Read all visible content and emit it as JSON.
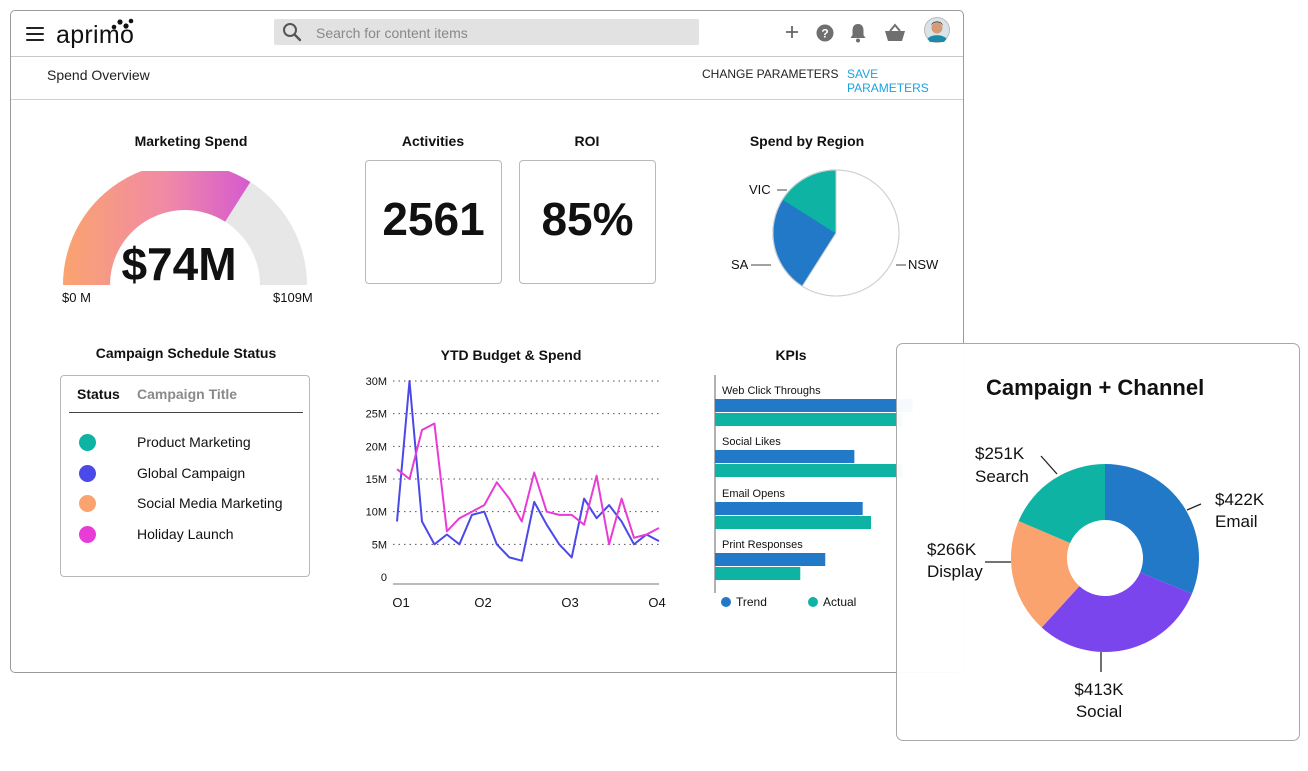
{
  "header": {
    "logo": "aprimo",
    "search_placeholder": "Search for content items",
    "icons": [
      "menu-icon",
      "search-icon",
      "plus-icon",
      "help-icon",
      "bell-icon",
      "basket-icon",
      "avatar"
    ]
  },
  "subheader": {
    "page_title": "Spend Overview",
    "change_parameters": "CHANGE PARAMETERS",
    "save_parameters": "SAVE PARAMETERS"
  },
  "colors": {
    "accent_link": "#1aa3e0",
    "teal": "#0fb3a3",
    "blue": "#2179c8",
    "purple_blue": "#4b49e8",
    "orange": "#fba36f",
    "magenta": "#e83cd6",
    "violet": "#7b45ee",
    "gauge_track": "#e8e7e8"
  },
  "marketing_spend": {
    "title": "Marketing Spend",
    "value": "$74M",
    "min_label": "$0 M",
    "max_label": "$109M",
    "fraction": 0.68
  },
  "activities": {
    "title": "Activities",
    "value": "2561"
  },
  "roi": {
    "title": "ROI",
    "value": "85%"
  },
  "spend_by_region": {
    "title": "Spend by Region",
    "chart_data": {
      "type": "pie",
      "title": "Spend by Region",
      "labels": [
        "VIC",
        "SA",
        "NSW"
      ],
      "values": [
        25,
        16,
        59
      ]
    }
  },
  "campaign_status": {
    "title": "Campaign Schedule Status",
    "col_status": "Status",
    "col_title": "Campaign Title",
    "rows": [
      {
        "title": "Product Marketing",
        "color": "#0fb3a3"
      },
      {
        "title": "Global Campaign",
        "color": "#4b49e8"
      },
      {
        "title": "Social Media Marketing",
        "color": "#fba36f"
      },
      {
        "title": "Holiday Launch",
        "color": "#e83cd6"
      }
    ]
  },
  "ytd_chart": {
    "title": "YTD Budget & Spend",
    "chart_data": {
      "type": "line",
      "title": "YTD Budget & Spend",
      "x_ticks": [
        "Q1",
        "Q2",
        "Q3",
        "Q4"
      ],
      "y_ticks": [
        "30M",
        "25M",
        "20M",
        "15M",
        "10M",
        "5M",
        "0"
      ],
      "ylim": [
        0,
        30
      ],
      "grid": "horizontal dotted",
      "series": [
        {
          "color": "#4b49e8",
          "values": [
            8.5,
            30,
            8.5,
            5,
            6.5,
            5,
            9.5,
            10,
            5,
            3,
            2.5,
            11.5,
            8,
            5,
            3,
            12,
            9,
            11,
            8.5,
            5,
            6.5,
            5.5
          ]
        },
        {
          "color": "#e83cd6",
          "values": [
            16.5,
            15,
            22.5,
            23.5,
            7,
            9,
            10,
            11,
            14.5,
            12,
            8.5,
            16,
            10,
            9.5,
            9.5,
            8,
            15.5,
            5,
            12,
            6,
            6.5,
            7.5
          ]
        }
      ]
    }
  },
  "kpis": {
    "title": "KPIs",
    "chart_data": {
      "type": "bar",
      "title": "KPIs",
      "categories": [
        "Web Click Throughs",
        "Social Likes",
        "Email Opens",
        "Print Responses"
      ],
      "series": [
        {
          "name": "Trend",
          "color": "#2179c8",
          "values": [
            95,
            67,
            71,
            53
          ]
        },
        {
          "name": "Actual",
          "color": "#0fb3a3",
          "values": [
            90,
            90,
            75,
            41
          ]
        }
      ],
      "legend": "bottom"
    }
  },
  "campaign_channel": {
    "title": "Campaign + Channel",
    "chart_data": {
      "type": "pie",
      "title": "Campaign + Channel",
      "donut": true,
      "slices": [
        {
          "value_label": "$422K",
          "name": "Email",
          "value": 422,
          "color": "#2179c8"
        },
        {
          "value_label": "$413K",
          "name": "Social",
          "value": 413,
          "color": "#7b45ee"
        },
        {
          "value_label": "$266K",
          "name": "Display",
          "value": 266,
          "color": "#fba36f"
        },
        {
          "value_label": "$251K",
          "name": "Search",
          "value": 251,
          "color": "#0fb3a3"
        }
      ]
    }
  }
}
